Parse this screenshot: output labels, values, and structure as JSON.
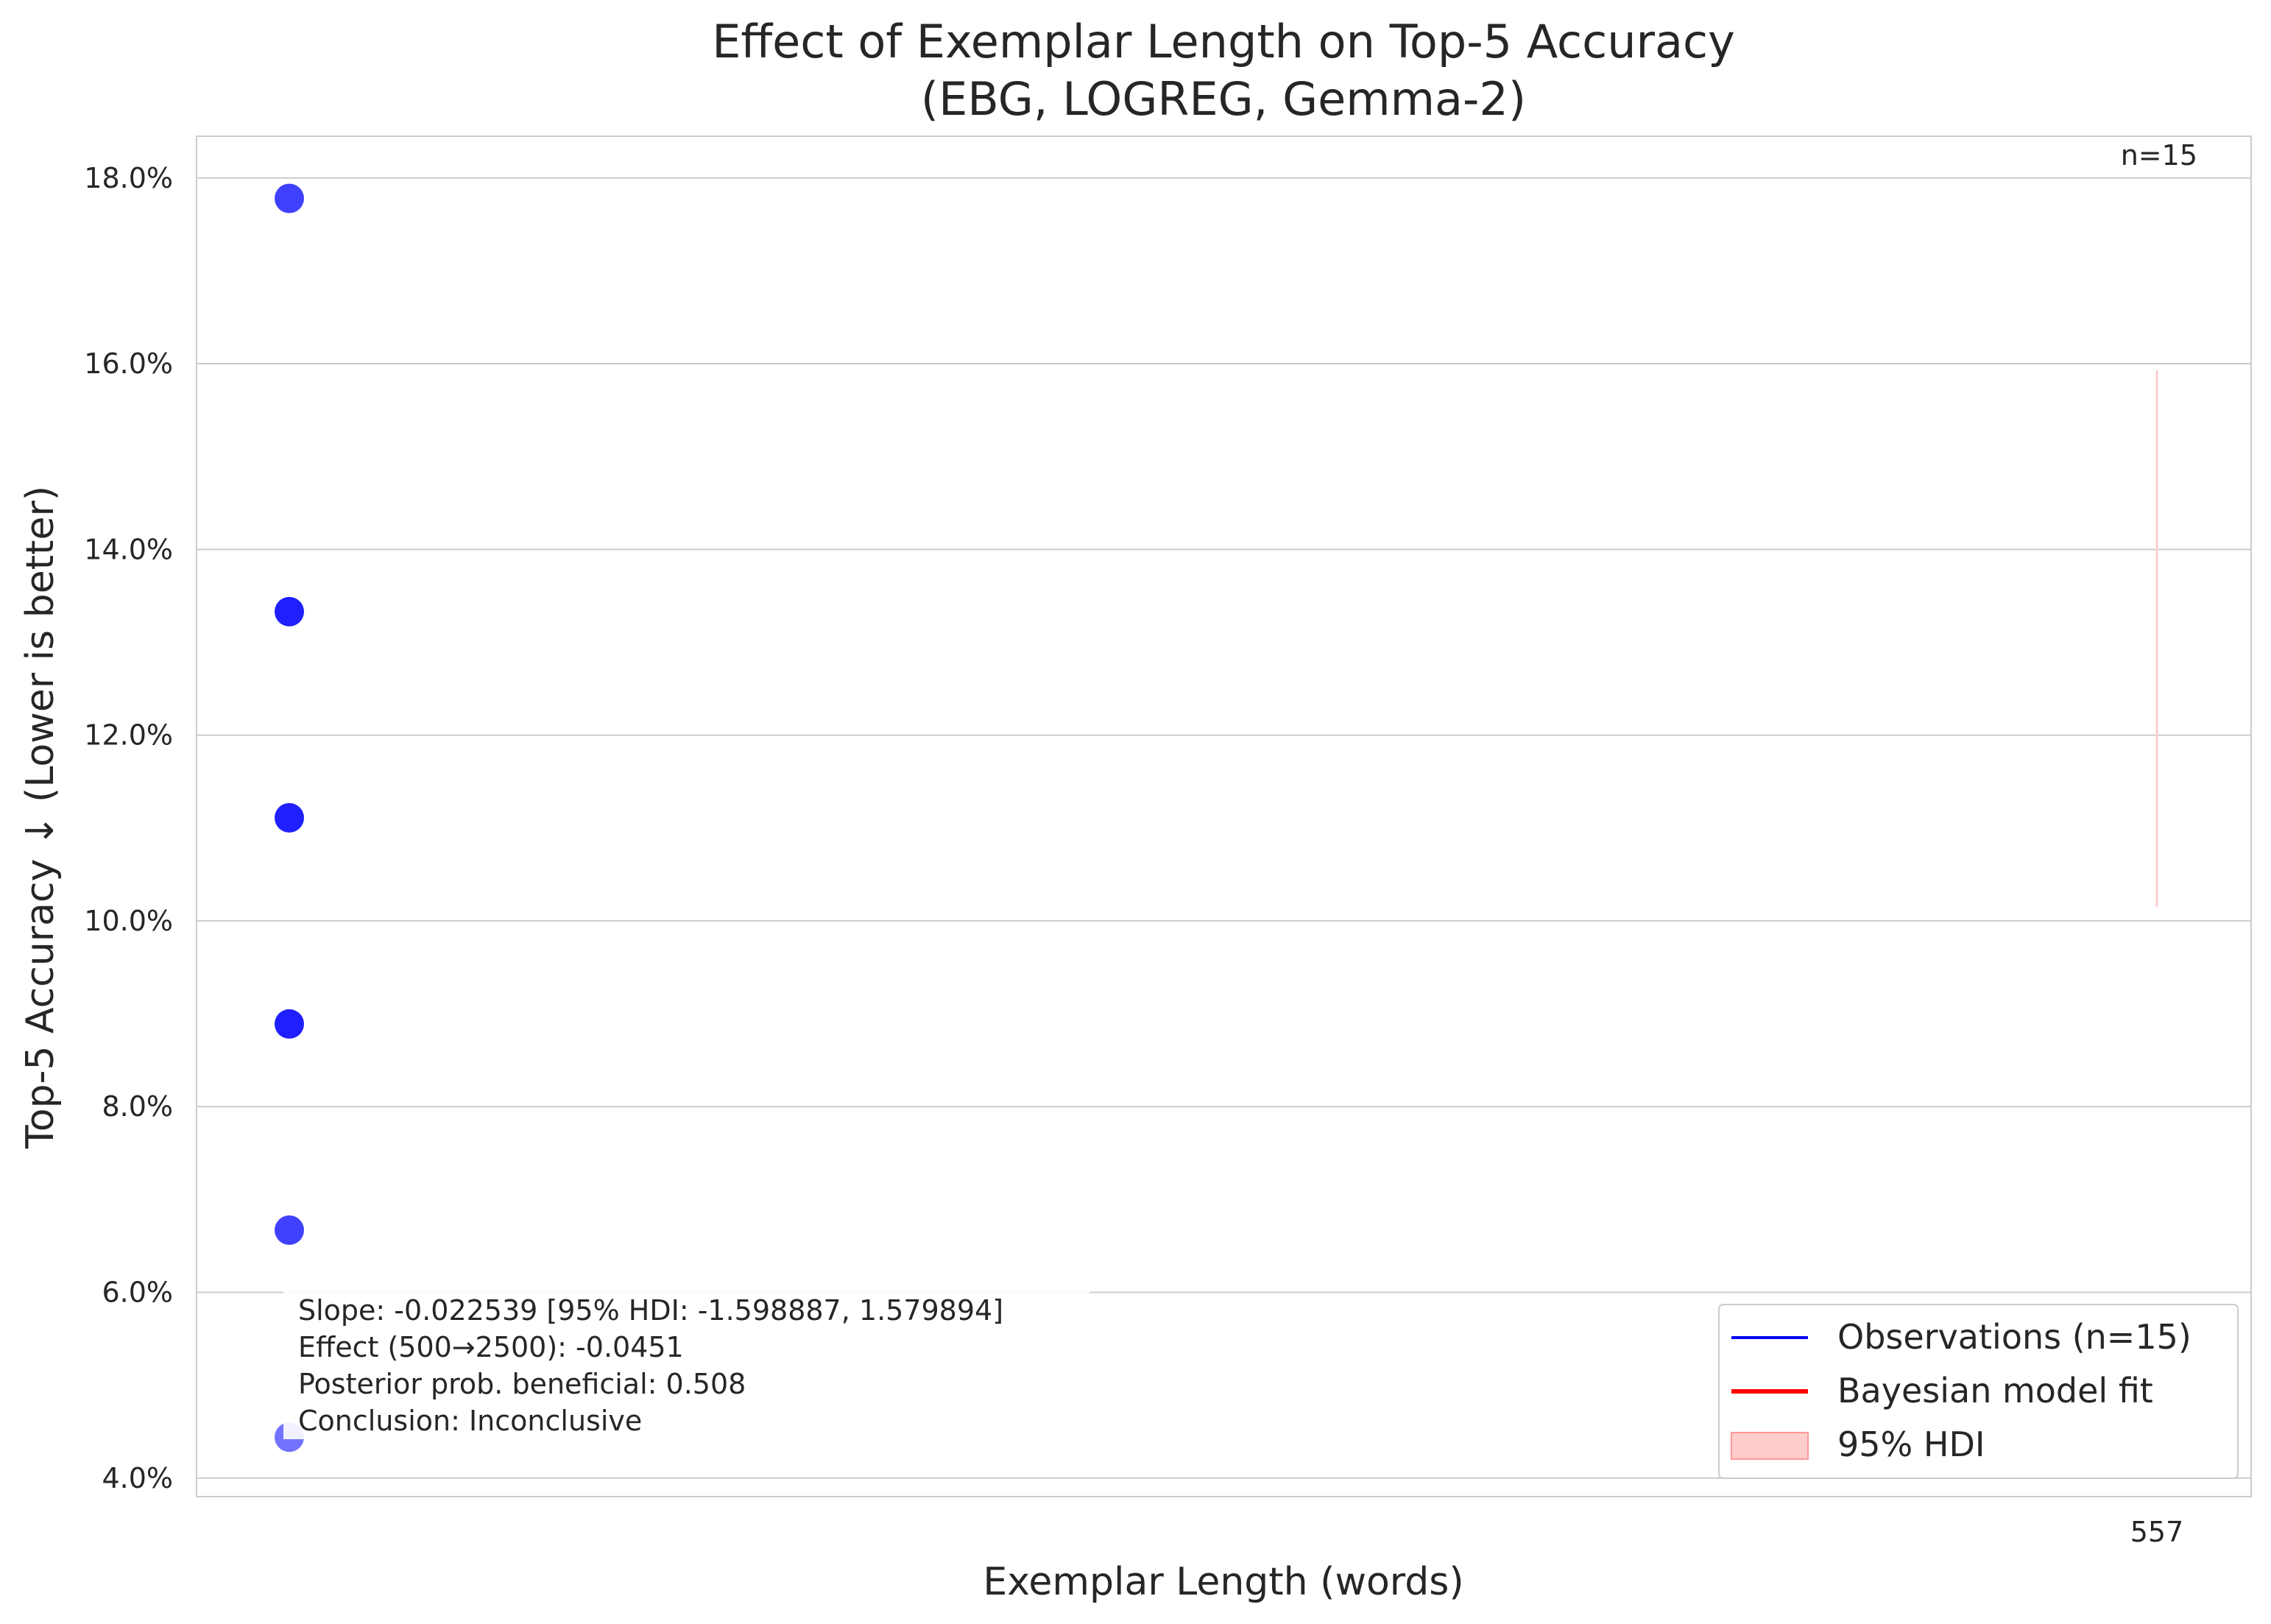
{
  "chart_data": {
    "type": "scatter",
    "title_line1": "Effect of Exemplar Length on Top-5 Accuracy",
    "title_line2": "(EBG, LOGREG, Gemma-2)",
    "xlabel": "Exemplar Length (words)",
    "ylabel": "Top-5 Accuracy ↓ (Lower is better)",
    "ylim": [
      3.8,
      18.45
    ],
    "yticks": [
      4.0,
      6.0,
      8.0,
      10.0,
      12.0,
      14.0,
      16.0,
      18.0
    ],
    "ytick_format_suffix": "%",
    "xticks": [
      "557"
    ],
    "grid": true,
    "n_label": "n=15",
    "series": [
      {
        "name": "Observations (n=15)",
        "color": "#0000ff",
        "points": [
          {
            "x": 557,
            "y": 17.78
          },
          {
            "x": 557,
            "y": 13.33
          },
          {
            "x": 557,
            "y": 11.11
          },
          {
            "x": 557,
            "y": 8.89
          },
          {
            "x": 557,
            "y": 6.67
          },
          {
            "x": 557,
            "y": 4.44
          }
        ]
      },
      {
        "name": "Bayesian model fit",
        "color": "#ff0000"
      },
      {
        "name": "95% HDI",
        "color": "#ffcccc",
        "interval": {
          "x": 557,
          "low": 10.15,
          "high": 15.93
        }
      }
    ],
    "legend_position": "lower right",
    "annotation": [
      "Slope: -0.022539 [95% HDI: -1.598887, 1.579894]",
      "Effect (500→2500): -0.0451",
      "Posterior prob. beneficial: 0.508",
      "Conclusion: Inconclusive"
    ]
  }
}
